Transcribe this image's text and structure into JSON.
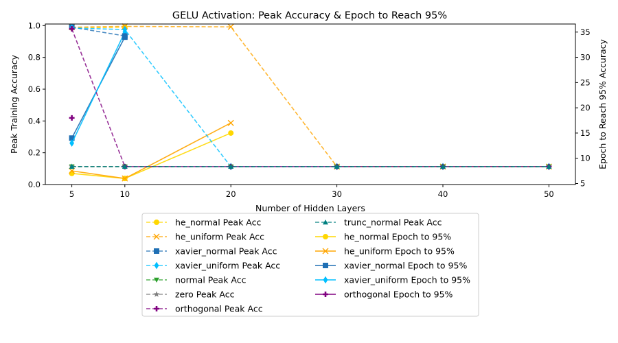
{
  "chart_data": {
    "type": "line",
    "title": "GELU Activation: Peak Accuracy & Epoch to Reach 95%",
    "xlabel": "Number of Hidden Layers",
    "ylabel": "Peak Training Accuracy",
    "y2label": "Epoch to Reach 95% Accuracy",
    "x_ticks": [
      5,
      10,
      20,
      30,
      40,
      50
    ],
    "xlim": [
      2.5,
      52.5
    ],
    "ylim": [
      0,
      1.01
    ],
    "y_ticks": [
      0.0,
      0.2,
      0.4,
      0.6,
      0.8,
      1.0
    ],
    "y2lim": [
      4.8,
      36.6
    ],
    "y2_ticks": [
      5,
      10,
      15,
      20,
      25,
      30,
      35
    ],
    "grid": false,
    "legend_position": "below",
    "peak_series": [
      {
        "name": "he_normal Peak Acc",
        "color": "#FFD700",
        "marker": "circle",
        "x": [
          5,
          10
        ],
        "y": [
          0.985,
          0.99
        ]
      },
      {
        "name": "he_uniform Peak Acc",
        "color": "#FFA500",
        "marker": "x",
        "x": [
          5,
          10,
          20,
          30,
          40,
          50
        ],
        "y": [
          0.99,
          0.995,
          0.992,
          0.113,
          0.113,
          0.113
        ]
      },
      {
        "name": "xavier_normal Peak Acc",
        "color": "#1f6fb4",
        "marker": "square",
        "x": [
          5,
          10
        ],
        "y": [
          0.99,
          0.935
        ]
      },
      {
        "name": "xavier_uniform Peak Acc",
        "color": "#00BFFF",
        "marker": "diamond",
        "x": [
          5,
          10,
          20,
          30,
          40,
          50
        ],
        "y": [
          0.985,
          0.975,
          0.113,
          0.113,
          0.113,
          0.113
        ]
      },
      {
        "name": "normal Peak Acc",
        "color": "#2ca02c",
        "marker": "triangle-down",
        "x": [
          5,
          10,
          20,
          30,
          40,
          50
        ],
        "y": [
          0.113,
          0.113,
          0.113,
          0.113,
          0.113,
          0.113
        ]
      },
      {
        "name": "zero Peak Acc",
        "color": "#7f7f7f",
        "marker": "star",
        "x": [
          5,
          10,
          20,
          30,
          40,
          50
        ],
        "y": [
          0.113,
          0.113,
          0.113,
          0.113,
          0.113,
          0.113
        ]
      },
      {
        "name": "orthogonal Peak Acc",
        "color": "#800080",
        "marker": "plus",
        "x": [
          5,
          10,
          20,
          30,
          40,
          50
        ],
        "y": [
          0.98,
          0.113,
          0.113,
          0.113,
          0.113,
          0.113
        ]
      },
      {
        "name": "trunc_normal Peak Acc",
        "color": "#008080",
        "marker": "triangle-up",
        "x": [
          5,
          10,
          20,
          30,
          40,
          50
        ],
        "y": [
          0.113,
          0.113,
          0.113,
          0.113,
          0.113,
          0.113
        ]
      }
    ],
    "epoch_series": [
      {
        "name": "he_normal Epoch to 95%",
        "color": "#FFD700",
        "marker": "circle",
        "x": [
          5,
          10,
          20
        ],
        "y": [
          7,
          6,
          15
        ]
      },
      {
        "name": "he_uniform Epoch to 95%",
        "color": "#FFA500",
        "marker": "x",
        "x": [
          5,
          10,
          20
        ],
        "y": [
          7.5,
          6,
          17
        ]
      },
      {
        "name": "xavier_normal Epoch to 95%",
        "color": "#1f6fb4",
        "marker": "square",
        "x": [
          5,
          10
        ],
        "y": [
          14,
          34
        ]
      },
      {
        "name": "xavier_uniform Epoch to 95%",
        "color": "#00BFFF",
        "marker": "diamond",
        "x": [
          5,
          10
        ],
        "y": [
          13,
          35
        ]
      },
      {
        "name": "orthogonal Epoch to 95%",
        "color": "#800080",
        "marker": "plus",
        "x": [
          5
        ],
        "y": [
          18
        ]
      }
    ],
    "legend_col1": [
      "he_normal Peak Acc",
      "he_uniform Peak Acc",
      "xavier_normal Peak Acc",
      "xavier_uniform Peak Acc",
      "normal Peak Acc",
      "zero Peak Acc",
      "orthogonal Peak Acc"
    ],
    "legend_col2": [
      "trunc_normal Peak Acc",
      "he_normal Epoch to 95%",
      "he_uniform Epoch to 95%",
      "xavier_normal Epoch to 95%",
      "xavier_uniform Epoch to 95%",
      "orthogonal Epoch to 95%"
    ]
  }
}
